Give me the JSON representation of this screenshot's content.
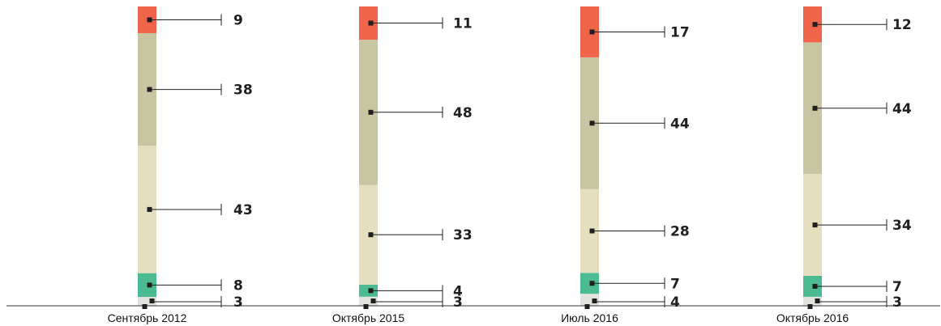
{
  "chart_data": {
    "type": "bar",
    "stacked": true,
    "categories": [
      "Сентябрь 2012",
      "Октябрь 2015",
      "Июль 2016",
      "Октябрь 2016"
    ],
    "series": [
      {
        "values": [
          3,
          3,
          4,
          3
        ],
        "color": "#e2e2de"
      },
      {
        "values": [
          8,
          4,
          7,
          7
        ],
        "color": "#4dbb92"
      },
      {
        "values": [
          43,
          33,
          28,
          34
        ],
        "color": "#e5dfbf"
      },
      {
        "values": [
          38,
          48,
          44,
          44
        ],
        "color": "#c8c5a3"
      },
      {
        "values": [
          9,
          11,
          17,
          12
        ],
        "color": "#f06449"
      }
    ],
    "value_labels": true,
    "legend": "none",
    "grid": false,
    "baseline_color": "#333333",
    "leader_color": "#1f1f1f"
  }
}
